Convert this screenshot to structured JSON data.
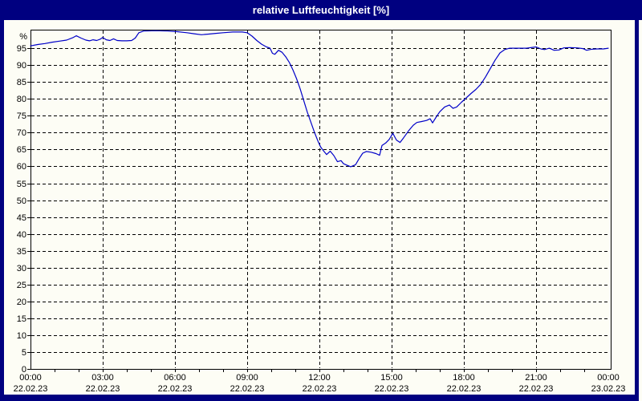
{
  "window": {
    "title": "relative Luftfeuchtigkeit [%]"
  },
  "colors": {
    "title_bar": "#000080",
    "frame": "#000080",
    "background": "#FDFDF5",
    "plot_border": "#000000",
    "grid": "#000000",
    "axis_text": "#000000",
    "title_text": "#FFFFFF",
    "line": "#0000C8"
  },
  "chart_data": {
    "type": "line",
    "title": "relative Luftfeuchtigkeit [%]",
    "ylabel_unit": "%",
    "xlabel": "",
    "ylim": [
      0,
      100.5
    ],
    "xlim_hours": [
      0,
      24.1
    ],
    "grid": "dashed",
    "legend_position": "none",
    "y_ticks": [
      0,
      5,
      10,
      15,
      20,
      25,
      30,
      35,
      40,
      45,
      50,
      55,
      60,
      65,
      70,
      75,
      80,
      85,
      90,
      95
    ],
    "x_ticks": [
      {
        "hours": 0,
        "time": "00:00",
        "date": "22.02.23"
      },
      {
        "hours": 3,
        "time": "03:00",
        "date": "22.02.23"
      },
      {
        "hours": 6,
        "time": "06:00",
        "date": "22.02.23"
      },
      {
        "hours": 9,
        "time": "09:00",
        "date": "22.02.23"
      },
      {
        "hours": 12,
        "time": "12:00",
        "date": "22.02.23"
      },
      {
        "hours": 15,
        "time": "15:00",
        "date": "22.02.23"
      },
      {
        "hours": 18,
        "time": "18:00",
        "date": "22.02.23"
      },
      {
        "hours": 21,
        "time": "21:00",
        "date": "22.02.23"
      },
      {
        "hours": 24,
        "time": "00:00",
        "date": "23.02.23"
      }
    ],
    "minor_x_tick_every_hours": 1,
    "series": [
      {
        "name": "relative Luftfeuchtigkeit",
        "color": "#0000C8",
        "points": [
          [
            0.0,
            95.7
          ],
          [
            0.3,
            96.1
          ],
          [
            0.6,
            96.4
          ],
          [
            0.9,
            96.8
          ],
          [
            1.2,
            97.1
          ],
          [
            1.5,
            97.4
          ],
          [
            1.75,
            98.1
          ],
          [
            1.9,
            98.7
          ],
          [
            2.1,
            98.0
          ],
          [
            2.3,
            97.4
          ],
          [
            2.45,
            97.2
          ],
          [
            2.6,
            97.5
          ],
          [
            2.75,
            97.3
          ],
          [
            2.9,
            97.7
          ],
          [
            3.0,
            98.2
          ],
          [
            3.15,
            97.5
          ],
          [
            3.3,
            97.3
          ],
          [
            3.45,
            97.8
          ],
          [
            3.6,
            97.3
          ],
          [
            3.8,
            97.2
          ],
          [
            4.0,
            97.2
          ],
          [
            4.2,
            97.3
          ],
          [
            4.35,
            98.0
          ],
          [
            4.5,
            99.6
          ],
          [
            4.7,
            100.1
          ],
          [
            5.2,
            100.2
          ],
          [
            5.7,
            100.1
          ],
          [
            6.1,
            99.9
          ],
          [
            6.5,
            99.6
          ],
          [
            6.8,
            99.3
          ],
          [
            7.1,
            99.0
          ],
          [
            7.4,
            99.2
          ],
          [
            7.7,
            99.4
          ],
          [
            8.0,
            99.6
          ],
          [
            8.4,
            99.8
          ],
          [
            8.8,
            99.8
          ],
          [
            9.0,
            99.6
          ],
          [
            9.2,
            98.6
          ],
          [
            9.4,
            97.3
          ],
          [
            9.6,
            96.2
          ],
          [
            9.8,
            95.4
          ],
          [
            9.95,
            95.0
          ],
          [
            10.05,
            93.5
          ],
          [
            10.15,
            93.2
          ],
          [
            10.3,
            94.4
          ],
          [
            10.45,
            93.8
          ],
          [
            10.6,
            92.5
          ],
          [
            10.75,
            90.8
          ],
          [
            10.9,
            88.6
          ],
          [
            11.05,
            86.0
          ],
          [
            11.2,
            83.0
          ],
          [
            11.35,
            79.5
          ],
          [
            11.5,
            76.0
          ],
          [
            11.65,
            73.0
          ],
          [
            11.8,
            70.0
          ],
          [
            11.95,
            67.3
          ],
          [
            12.05,
            65.8
          ],
          [
            12.15,
            64.8
          ],
          [
            12.3,
            63.5
          ],
          [
            12.45,
            64.5
          ],
          [
            12.6,
            63.2
          ],
          [
            12.75,
            61.4
          ],
          [
            12.9,
            61.7
          ],
          [
            13.0,
            60.8
          ],
          [
            13.1,
            60.5
          ],
          [
            13.3,
            59.9
          ],
          [
            13.5,
            60.5
          ],
          [
            13.65,
            62.3
          ],
          [
            13.8,
            63.9
          ],
          [
            13.95,
            64.4
          ],
          [
            14.15,
            64.2
          ],
          [
            14.35,
            63.8
          ],
          [
            14.5,
            63.3
          ],
          [
            14.6,
            66.2
          ],
          [
            14.75,
            66.9
          ],
          [
            14.9,
            68.0
          ],
          [
            15.05,
            69.8
          ],
          [
            15.2,
            67.8
          ],
          [
            15.35,
            67.1
          ],
          [
            15.5,
            68.5
          ],
          [
            15.7,
            70.5
          ],
          [
            15.9,
            72.2
          ],
          [
            16.05,
            73.0
          ],
          [
            16.25,
            73.3
          ],
          [
            16.45,
            73.6
          ],
          [
            16.6,
            74.1
          ],
          [
            16.7,
            72.9
          ],
          [
            16.85,
            74.6
          ],
          [
            17.0,
            76.2
          ],
          [
            17.2,
            77.6
          ],
          [
            17.4,
            78.2
          ],
          [
            17.55,
            77.2
          ],
          [
            17.7,
            77.6
          ],
          [
            17.9,
            79.0
          ],
          [
            18.1,
            80.3
          ],
          [
            18.3,
            81.6
          ],
          [
            18.5,
            82.8
          ],
          [
            18.7,
            84.3
          ],
          [
            18.9,
            86.5
          ],
          [
            19.1,
            89.0
          ],
          [
            19.3,
            91.5
          ],
          [
            19.5,
            93.6
          ],
          [
            19.7,
            94.6
          ],
          [
            19.9,
            95.0
          ],
          [
            20.2,
            95.0
          ],
          [
            20.6,
            95.0
          ],
          [
            21.0,
            95.4
          ],
          [
            21.2,
            94.8
          ],
          [
            21.35,
            94.6
          ],
          [
            21.55,
            95.0
          ],
          [
            21.75,
            94.4
          ],
          [
            21.95,
            94.5
          ],
          [
            22.15,
            95.1
          ],
          [
            22.4,
            95.2
          ],
          [
            22.7,
            95.1
          ],
          [
            22.95,
            94.9
          ],
          [
            23.1,
            94.4
          ],
          [
            23.3,
            94.7
          ],
          [
            23.55,
            94.8
          ],
          [
            23.8,
            94.8
          ],
          [
            24.0,
            95.0
          ]
        ]
      }
    ]
  }
}
